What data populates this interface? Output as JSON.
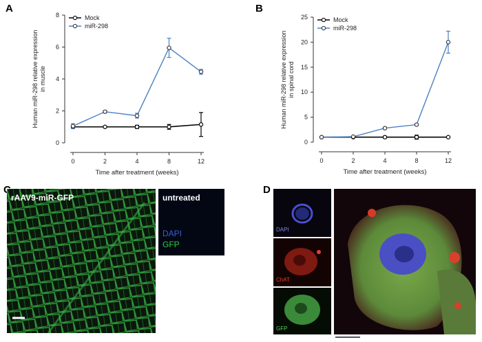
{
  "panels": {
    "a": "A",
    "b": "B",
    "c": "C",
    "d": "D"
  },
  "colors": {
    "mock": "#000000",
    "mir": "#4a7fc1",
    "green_tissue": "#2a8a34",
    "dapi": "#3a5bd8",
    "chat": "#d8402c"
  },
  "chart_data": [
    {
      "type": "line",
      "x": [
        0,
        2,
        4,
        8,
        12
      ],
      "xticks": [
        "0",
        "2",
        "4",
        "8",
        "12"
      ],
      "xlabel": "Time after treatment (weeks)",
      "ylabel": [
        "Human miR-298 relative expression",
        "in muscle"
      ],
      "ylim": [
        0,
        8
      ],
      "yticks": [
        0,
        2,
        4,
        6,
        8
      ],
      "grid": false,
      "legend_position": "top-left",
      "series": [
        {
          "name": "Mock",
          "values": [
            1.0,
            1.0,
            1.0,
            1.0,
            1.15
          ],
          "errors": [
            0.1,
            0.05,
            0.1,
            0.15,
            0.75
          ],
          "color": "#000000"
        },
        {
          "name": "miR-298",
          "values": [
            1.05,
            1.95,
            1.7,
            5.95,
            4.45
          ],
          "errors": [
            0.15,
            0.08,
            0.15,
            0.6,
            0.15
          ],
          "color": "#4a7fc1"
        }
      ]
    },
    {
      "type": "line",
      "x": [
        0,
        2,
        4,
        8,
        12
      ],
      "xticks": [
        "0",
        "2",
        "4",
        "8",
        "12"
      ],
      "xlabel": "Time after treatment (weeks)",
      "ylabel": [
        "Human miR-298 relative expression",
        "in spinal cord"
      ],
      "ylim": [
        0,
        25
      ],
      "yticks": [
        0,
        5,
        10,
        15,
        20,
        25
      ],
      "grid": false,
      "legend_position": "top-left",
      "series": [
        {
          "name": "Mock",
          "values": [
            1.0,
            1.0,
            1.0,
            1.0,
            1.0
          ],
          "errors": [
            0.1,
            0.1,
            0.2,
            0.4,
            0.1
          ],
          "color": "#000000"
        },
        {
          "name": "miR-298",
          "values": [
            1.0,
            1.1,
            2.8,
            3.5,
            20.0
          ],
          "errors": [
            0.1,
            0.1,
            0.2,
            0.2,
            2.2
          ],
          "color": "#4a7fc1"
        }
      ]
    }
  ],
  "panel_c": {
    "left_label": "rAAV9-miR-GFP",
    "right_label": "untreated",
    "dapi": "DAPI",
    "gfp": "GFP"
  },
  "panel_d": {
    "dapi": "DAPI",
    "chat": "ChAT",
    "gfp": "GFP"
  }
}
